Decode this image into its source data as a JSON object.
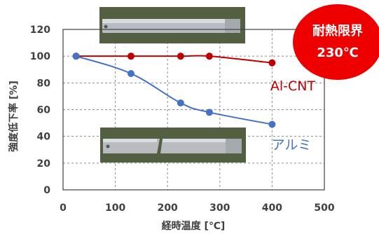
{
  "chart_data": {
    "type": "line",
    "xlabel": "経時温度 [℃]",
    "ylabel": "強度低下率 [%]",
    "xlim": [
      0,
      500
    ],
    "ylim": [
      0,
      120
    ],
    "xticks": [
      "0",
      "100",
      "200",
      "300",
      "400",
      "500"
    ],
    "yticks": [
      "0",
      "20",
      "40",
      "60",
      "80",
      "100",
      "120"
    ],
    "grid": true,
    "series": [
      {
        "name": "Al-CNT",
        "color": "#c00000",
        "x": [
          25,
          130,
          225,
          280,
          400
        ],
        "y": [
          100,
          100,
          100,
          100,
          95
        ]
      },
      {
        "name": "アルミ",
        "color": "#4472c4",
        "x": [
          25,
          130,
          225,
          280,
          400
        ],
        "y": [
          100,
          87,
          65,
          58,
          49
        ]
      }
    ],
    "badge": {
      "lines": [
        "耐熱限界",
        "230℃"
      ],
      "color": "#ee0000"
    }
  }
}
